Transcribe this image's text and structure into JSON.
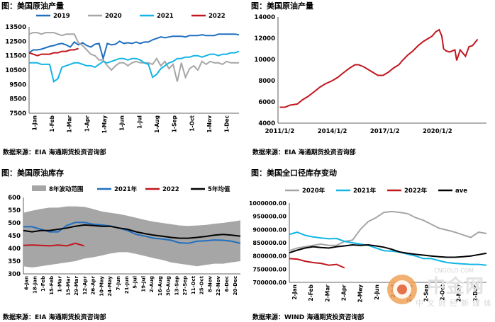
{
  "panels": [
    {
      "title": "图：美国原油产量",
      "source": "数据来源：EIA  海通期货投资咨询部"
    },
    {
      "title": "图：美国原油产量",
      "source": "数据来源：EIA  海通期货投资咨询部"
    },
    {
      "title": "图：美国原油库存",
      "source": "数据来源：EIA  海通期货投资咨询部"
    },
    {
      "title": "图：美国全口径库存变动",
      "source": "数据来源：WIND  海通期货投资咨询部"
    }
  ],
  "watermark": {
    "main": "中金网",
    "url": "CNGOLD.COM",
    "sub": "中文财经新媒体"
  },
  "chart_data": [
    {
      "type": "line",
      "yticks": [
        "13500",
        "12500",
        "11500",
        "10500",
        "9500",
        "8500",
        "7500"
      ],
      "ylim": [
        7500,
        13500
      ],
      "xticks": [
        "1-Jan",
        "1-Feb",
        "1-Mar",
        "1-Apr",
        "1-May",
        "1-Jun",
        "1-Jul",
        "1-Aug",
        "1-Sep",
        "1-Oct",
        "1-Nov",
        "1-Dec"
      ],
      "legend_position": "top",
      "series": [
        {
          "name": "2019",
          "color": "#1f6fbf",
          "values": [
            11700,
            11900,
            11900,
            11950,
            12050,
            12150,
            12200,
            12300,
            12350,
            12250,
            12100,
            12450,
            12250,
            12400,
            12200,
            12100,
            12300,
            12350,
            11300,
            12350,
            12250,
            12300,
            12500,
            12350,
            12400,
            12350,
            12450,
            12350,
            12450,
            12450,
            12600,
            12700,
            12800,
            12750,
            12800,
            12850,
            12850,
            12850,
            12800,
            12900,
            12900,
            12900,
            12950,
            12900,
            12900,
            12900,
            13000,
            13000,
            13000,
            13000,
            13000,
            12950
          ]
        },
        {
          "name": "2020",
          "color": "#a6a6a6",
          "values": [
            13000,
            13100,
            13100,
            13000,
            13100,
            13100,
            13100,
            13000,
            12900,
            13000,
            13000,
            13000,
            12400,
            12200,
            11900,
            11600,
            11500,
            11200,
            11200,
            10800,
            10500,
            10800,
            11000,
            11000,
            10800,
            11000,
            11100,
            11000,
            11000,
            11000,
            10900,
            11300,
            10800,
            11100,
            10600,
            10900,
            9700,
            11000,
            10000,
            10600,
            10800,
            10500,
            11100,
            10900,
            11100,
            11000,
            11000,
            10900,
            11100,
            11000,
            11000,
            11000
          ]
        },
        {
          "name": "2021",
          "color": "#12b5e5",
          "values": [
            11000,
            11000,
            11000,
            10900,
            10900,
            10900,
            9700,
            9900,
            10700,
            10800,
            10900,
            11000,
            11000,
            10900,
            10800,
            10800,
            10700,
            10900,
            11100,
            11000,
            11100,
            11200,
            11300,
            11300,
            11200,
            11300,
            11300,
            11200,
            11000,
            10900,
            10000,
            10200,
            10600,
            10800,
            11000,
            11100,
            11300,
            11300,
            11400,
            11400,
            11500,
            11500,
            11400,
            11500,
            11600,
            11600,
            11500,
            11600,
            11600,
            11700,
            11700,
            11800
          ]
        },
        {
          "name": "2022",
          "color": "#c0161e",
          "values": [
            11700,
            11600,
            11500,
            11600,
            11600,
            11600,
            11700,
            11700,
            11800,
            11800,
            11900,
            11900,
            12000
          ]
        }
      ]
    },
    {
      "type": "line",
      "yticks": [
        "14000",
        "12000",
        "10000",
        "8000",
        "6000",
        "4000"
      ],
      "ylim": [
        4000,
        14000
      ],
      "xticks": [
        "2011/1/2",
        "2014/1/2",
        "2017/1/2",
        "2020/1/2"
      ],
      "series": [
        {
          "name": "",
          "color": "#c0161e",
          "x": [
            2011.0,
            2011.3,
            2011.6,
            2012.0,
            2012.3,
            2012.6,
            2013.0,
            2013.3,
            2013.6,
            2014.0,
            2014.3,
            2014.6,
            2015.0,
            2015.3,
            2015.5,
            2015.8,
            2016.0,
            2016.3,
            2016.6,
            2016.9,
            2017.2,
            2017.5,
            2017.8,
            2018.0,
            2018.3,
            2018.6,
            2018.9,
            2019.2,
            2019.5,
            2019.7,
            2019.9,
            2020.1,
            2020.25,
            2020.35,
            2020.5,
            2020.7,
            2021.0,
            2021.1,
            2021.3,
            2021.6,
            2021.8,
            2022.0,
            2022.3
          ],
          "values": [
            5500,
            5500,
            5700,
            5800,
            6200,
            6500,
            7000,
            7400,
            7700,
            8000,
            8300,
            8700,
            9200,
            9500,
            9500,
            9300,
            9100,
            8800,
            8500,
            8500,
            8800,
            9200,
            9500,
            9900,
            10400,
            10800,
            11300,
            11700,
            12000,
            12200,
            12600,
            12800,
            12200,
            11000,
            10800,
            10700,
            10900,
            9900,
            10900,
            10300,
            11200,
            11300,
            11900
          ]
        }
      ]
    },
    {
      "type": "area",
      "yticks": [
        "600",
        "550",
        "500",
        "450",
        "400",
        "350",
        "300"
      ],
      "ylim": [
        300,
        600
      ],
      "xticks": [
        "4-Jan",
        "18-Jan",
        "1-Feb",
        "15-Feb",
        "1-Mar",
        "15-Mar",
        "29-Mar",
        "12-Apr",
        "26-Apr",
        "10-May",
        "24-May",
        "7-Jun",
        "21-Jun",
        "5-Jul",
        "19-Jul",
        "2-Aug",
        "16-Aug",
        "30-Aug",
        "13-Sep",
        "27-Sep",
        "11-Oct",
        "25-Oct",
        "8-Nov",
        "22-Nov",
        "6-Dec",
        "20-Dec"
      ],
      "legend_position": "top",
      "series": [
        {
          "name": "8年波动范围",
          "color": "#a6a6a6",
          "low": [
            330,
            325,
            330,
            335,
            340,
            345,
            350,
            360,
            365,
            372,
            380,
            385,
            385,
            378,
            370,
            362,
            355,
            345,
            340,
            335,
            330,
            335,
            340,
            340,
            345,
            350
          ],
          "high": [
            540,
            548,
            555,
            560,
            560,
            565,
            565,
            563,
            555,
            545,
            540,
            535,
            528,
            520,
            512,
            505,
            500,
            495,
            490,
            488,
            490,
            492,
            497,
            500,
            505,
            510
          ]
        },
        {
          "name": "2021年",
          "color": "#1f6fbf",
          "values": [
            485,
            485,
            475,
            465,
            465,
            490,
            502,
            502,
            495,
            492,
            488,
            480,
            470,
            455,
            448,
            440,
            437,
            432,
            422,
            420,
            428,
            430,
            433,
            432,
            428,
            420
          ]
        },
        {
          "name": "2022",
          "color": "#c0161e",
          "values": [
            412,
            413,
            412,
            410,
            413,
            410,
            420,
            410
          ]
        },
        {
          "name": "5年均值",
          "color": "#000000",
          "values": [
            470,
            465,
            470,
            470,
            475,
            480,
            487,
            492,
            490,
            487,
            487,
            480,
            475,
            465,
            458,
            452,
            448,
            443,
            440,
            440,
            443,
            447,
            452,
            455,
            452,
            448
          ]
        }
      ]
    },
    {
      "type": "line",
      "yticks": [
        "1000000.00",
        "950000.00",
        "900000.00",
        "850000.00",
        "800000.00",
        "750000.00",
        "700000.00"
      ],
      "ylim": [
        700000,
        1000000
      ],
      "xticks": [
        "2-Jan",
        "2-Feb",
        "2-Mar",
        "2-Apr",
        "2-May",
        "2-Jun",
        "2-Jul",
        "2-Aug",
        "2-Sep",
        "2-Oct",
        "2-Nov",
        "2-Dec"
      ],
      "legend_position": "top",
      "series": [
        {
          "name": "2020年",
          "color": "#a6a6a6",
          "values": [
            820000,
            830000,
            835000,
            840000,
            845000,
            840000,
            840000,
            855000,
            860000,
            900000,
            930000,
            945000,
            965000,
            968000,
            965000,
            960000,
            945000,
            935000,
            920000,
            905000,
            898000,
            890000,
            880000,
            870000,
            890000,
            885000
          ]
        },
        {
          "name": "2021年",
          "color": "#12b5e5",
          "values": [
            882000,
            890000,
            878000,
            872000,
            868000,
            865000,
            866000,
            855000,
            850000,
            845000,
            840000,
            830000,
            820000,
            818000,
            815000,
            807000,
            800000,
            790000,
            790000,
            782000,
            775000,
            772000,
            770000,
            768000,
            768000,
            765000
          ]
        },
        {
          "name": "2022年",
          "color": "#c0161e",
          "values": [
            790000,
            788000,
            780000,
            775000,
            772000,
            765000,
            768000,
            755000
          ]
        },
        {
          "name": "ave",
          "color": "#000000",
          "values": [
            812000,
            822000,
            830000,
            835000,
            832000,
            830000,
            835000,
            838000,
            842000,
            840000,
            842000,
            838000,
            833000,
            825000,
            815000,
            810000,
            806000,
            803000,
            800000,
            797000,
            795000,
            795000,
            797000,
            800000,
            805000,
            810000
          ]
        }
      ]
    }
  ]
}
